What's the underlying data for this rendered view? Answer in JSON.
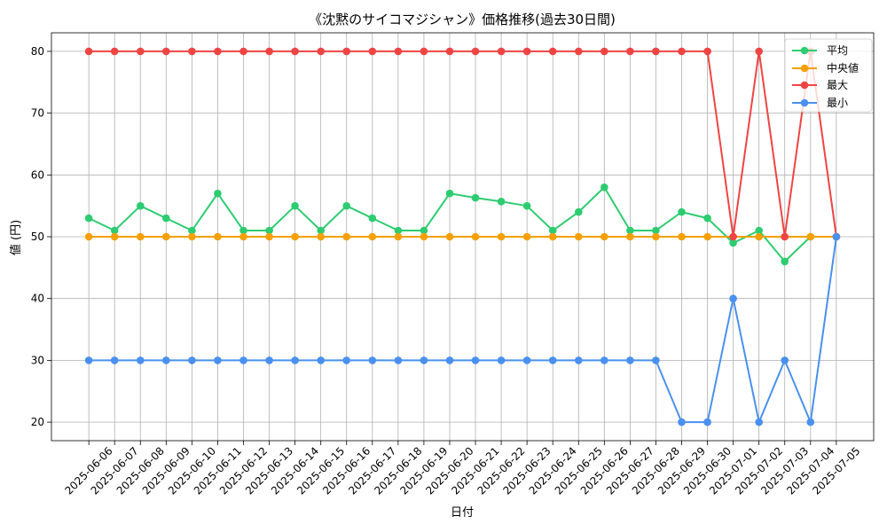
{
  "chart_data": {
    "type": "line",
    "title": "《沈黙のサイコマジシャン》価格推移(過去30日間)",
    "xlabel": "日付",
    "ylabel": "値 (円)",
    "categories": [
      "2025-06-06",
      "2025-06-07",
      "2025-06-08",
      "2025-06-09",
      "2025-06-10",
      "2025-06-11",
      "2025-06-12",
      "2025-06-13",
      "2025-06-14",
      "2025-06-15",
      "2025-06-16",
      "2025-06-17",
      "2025-06-18",
      "2025-06-19",
      "2025-06-20",
      "2025-06-21",
      "2025-06-22",
      "2025-06-23",
      "2025-06-24",
      "2025-06-25",
      "2025-06-26",
      "2025-06-27",
      "2025-06-28",
      "2025-06-29",
      "2025-06-30",
      "2025-07-01",
      "2025-07-02",
      "2025-07-03",
      "2025-07-04",
      "2025-07-05"
    ],
    "ylim": [
      17,
      83
    ],
    "yticks": [
      20,
      30,
      40,
      50,
      60,
      70,
      80
    ],
    "grid": true,
    "legend_position": "top-right",
    "series": [
      {
        "name": "平均",
        "color": "#2ecc71",
        "values": [
          53,
          51,
          55,
          53,
          51,
          57,
          51,
          51,
          55,
          51,
          55,
          53,
          51,
          51,
          57,
          56.3,
          55.7,
          55,
          51,
          54,
          58,
          51,
          51,
          54,
          53,
          49,
          51,
          46,
          50,
          50
        ]
      },
      {
        "name": "中央値",
        "color": "#f5a000",
        "values": [
          50,
          50,
          50,
          50,
          50,
          50,
          50,
          50,
          50,
          50,
          50,
          50,
          50,
          50,
          50,
          50,
          50,
          50,
          50,
          50,
          50,
          50,
          50,
          50,
          50,
          50,
          50,
          50,
          50,
          50
        ]
      },
      {
        "name": "最大",
        "color": "#ef4444",
        "values": [
          80,
          80,
          80,
          80,
          80,
          80,
          80,
          80,
          80,
          80,
          80,
          80,
          80,
          80,
          80,
          80,
          80,
          80,
          80,
          80,
          80,
          80,
          80,
          80,
          80,
          50,
          80,
          50,
          80,
          50
        ]
      },
      {
        "name": "最小",
        "color": "#4a90f0",
        "values": [
          30,
          30,
          30,
          30,
          30,
          30,
          30,
          30,
          30,
          30,
          30,
          30,
          30,
          30,
          30,
          30,
          30,
          30,
          30,
          30,
          30,
          30,
          30,
          20,
          20,
          40,
          20,
          30,
          20,
          50
        ]
      }
    ]
  }
}
